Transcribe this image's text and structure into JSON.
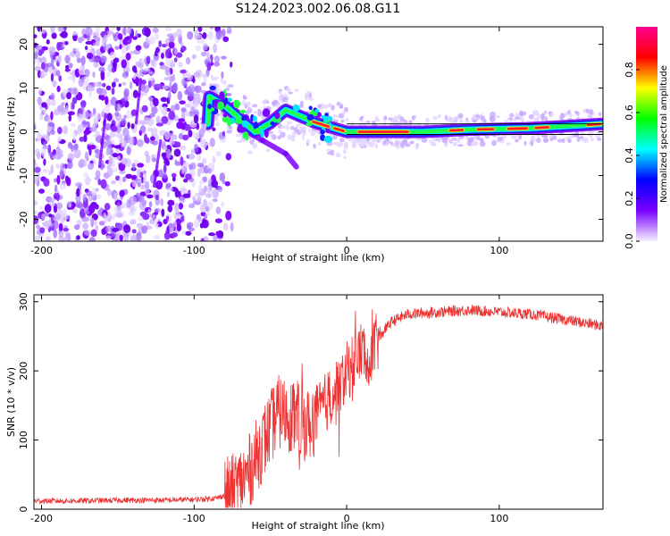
{
  "title": "S124.2023.002.06.08.G11",
  "chart_data": [
    {
      "type": "heatmap",
      "title": "",
      "xlabel": "Height of straight line (km)",
      "ylabel": "Frequency (Hz)",
      "xlim": [
        -205,
        168
      ],
      "ylim": [
        -25,
        24
      ],
      "xticks": [
        -200,
        -100,
        0,
        100
      ],
      "xtick_labels": [
        "-200",
        "-100",
        "0",
        "100"
      ],
      "yticks": [
        -20,
        -10,
        0,
        10,
        20
      ],
      "ytick_labels": [
        "-20",
        "-10",
        "0",
        "10",
        "20"
      ],
      "noise_region": {
        "x_end": -82
      },
      "ridge": [
        {
          "x": -90,
          "y": 8
        },
        {
          "x": -80,
          "y": 6
        },
        {
          "x": -70,
          "y": 3
        },
        {
          "x": -60,
          "y": 0
        },
        {
          "x": -50,
          "y": 2
        },
        {
          "x": -40,
          "y": 5
        },
        {
          "x": -30,
          "y": 3.5
        },
        {
          "x": -20,
          "y": 2
        },
        {
          "x": -10,
          "y": 1
        },
        {
          "x": 0,
          "y": 0
        },
        {
          "x": 10,
          "y": 0
        },
        {
          "x": 50,
          "y": 0
        },
        {
          "x": 80,
          "y": 0.5
        },
        {
          "x": 120,
          "y": 0.8
        },
        {
          "x": 168,
          "y": 1.8
        }
      ],
      "side_branch": [
        {
          "x": -70,
          "y": 1
        },
        {
          "x": -55,
          "y": -2
        },
        {
          "x": -40,
          "y": -5
        },
        {
          "x": -33,
          "y": -8
        }
      ],
      "colorbar": {
        "label": "Normalized spectral amplitude",
        "ticks": [
          0.0,
          0.2,
          0.4,
          0.6,
          0.8
        ],
        "tick_labels": [
          "0.0",
          "0.2",
          "0.4",
          "0.6",
          "0.8"
        ],
        "colors": [
          "#f5f0ff",
          "#7a00ff",
          "#0000ff",
          "#00ffff",
          "#00ff00",
          "#ffff00",
          "#ff0000",
          "#ff0090"
        ]
      }
    },
    {
      "type": "line",
      "title": "",
      "xlabel": "Height of straight line (km)",
      "ylabel": "SNR (10 * v/v)",
      "xlim": [
        -205,
        168
      ],
      "ylim": [
        0,
        310
      ],
      "xticks": [
        -200,
        -100,
        0,
        100
      ],
      "xtick_labels": [
        "-200",
        "-100",
        "0",
        "100"
      ],
      "yticks": [
        0,
        100,
        200,
        300
      ],
      "ytick_labels": [
        "0",
        "100",
        "200",
        "300"
      ],
      "color": "#ee3333",
      "series": [
        {
          "name": "SNR",
          "x": [
            -205,
            -180,
            -150,
            -120,
            -100,
            -85,
            -75,
            -65,
            -55,
            -45,
            -35,
            -25,
            -15,
            -5,
            5,
            10,
            15,
            20,
            25,
            30,
            40,
            60,
            80,
            100,
            120,
            140,
            168
          ],
          "y": [
            12,
            12,
            13,
            13,
            14,
            16,
            25,
            50,
            95,
            140,
            135,
            120,
            150,
            180,
            215,
            230,
            225,
            240,
            260,
            272,
            282,
            285,
            288,
            285,
            282,
            275,
            265
          ]
        }
      ]
    }
  ]
}
